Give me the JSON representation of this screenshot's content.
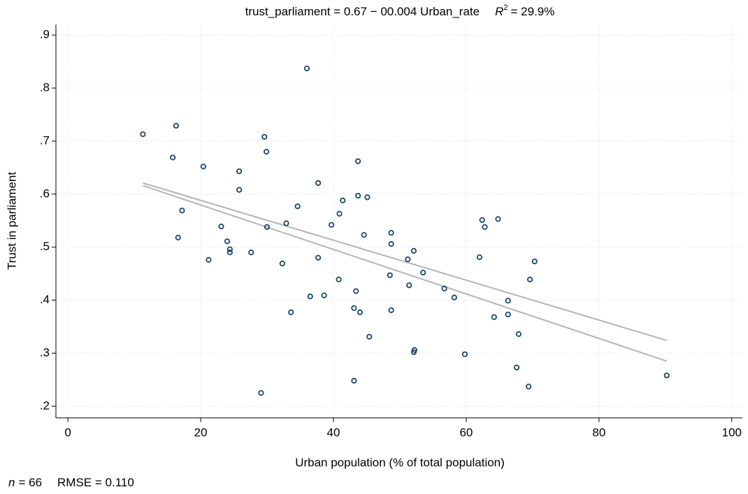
{
  "chart_data": {
    "type": "scatter",
    "title": "trust_parliament = 0.67 − 00.004 Urban_rate",
    "title_r": "R",
    "title_r_sup": "2",
    "title_r_value": "= 29.9%",
    "xlabel": "Urban population (% of total population)",
    "ylabel": "Trust in parliament",
    "note_n": "n",
    "note_n_value": "= 66",
    "note_rmse": "RMSE = 0.110",
    "xlim": [
      -1.8,
      101.6
    ],
    "ylim": [
      0.178,
      0.92
    ],
    "xticks": [
      0,
      20,
      40,
      60,
      80,
      100
    ],
    "yticks": [
      {
        "value": 0.2,
        "label": ".2"
      },
      {
        "value": 0.3,
        "label": ".3"
      },
      {
        "value": 0.4,
        "label": ".4"
      },
      {
        "value": 0.5,
        "label": ".5"
      },
      {
        "value": 0.6,
        "label": ".6"
      },
      {
        "value": 0.7,
        "label": ".7"
      },
      {
        "value": 0.8,
        "label": ".8"
      },
      {
        "value": 0.9,
        "label": ".9"
      }
    ],
    "grid": true,
    "series": [
      {
        "color": "#1a476f",
        "x": [
          11.3,
          16.3,
          15.8,
          20.4,
          17.2,
          16.6,
          21.2,
          23.1,
          24.0,
          24.4,
          24.4,
          25.8,
          25.8,
          27.6,
          29.1,
          29.6,
          30.0,
          29.9,
          32.3,
          33.6,
          34.6,
          36.0,
          37.7,
          37.7,
          36.5,
          38.6,
          39.7,
          40.9,
          41.4,
          40.8,
          43.7,
          43.7,
          45.1,
          44.6,
          43.4,
          43.1,
          44.0,
          45.4,
          43.1,
          48.7,
          48.7,
          48.5,
          48.7,
          51.2,
          52.1,
          53.5,
          51.4,
          52.2,
          52.1,
          56.7,
          58.2,
          59.8,
          62.4,
          62.8,
          64.8,
          62.0,
          66.3,
          66.3,
          64.2,
          67.9,
          67.6,
          69.4,
          69.6,
          70.3,
          90.2,
          32.9
        ],
        "values": [
          0.713,
          0.729,
          0.669,
          0.652,
          0.569,
          0.518,
          0.476,
          0.539,
          0.511,
          0.496,
          0.49,
          0.643,
          0.608,
          0.49,
          0.225,
          0.708,
          0.538,
          0.68,
          0.469,
          0.377,
          0.577,
          0.837,
          0.621,
          0.48,
          0.407,
          0.409,
          0.542,
          0.563,
          0.588,
          0.439,
          0.662,
          0.597,
          0.594,
          0.523,
          0.417,
          0.385,
          0.377,
          0.331,
          0.248,
          0.527,
          0.506,
          0.447,
          0.381,
          0.477,
          0.493,
          0.452,
          0.428,
          0.306,
          0.302,
          0.422,
          0.405,
          0.298,
          0.551,
          0.538,
          0.553,
          0.481,
          0.399,
          0.373,
          0.368,
          0.336,
          0.273,
          0.237,
          0.439,
          0.473,
          0.258,
          0.545
        ]
      }
    ],
    "fit_lines": [
      {
        "color": "#b4b4b4",
        "x": [
          11.3,
          90.2
        ],
        "values": [
          0.621,
          0.324
        ]
      },
      {
        "color": "#b4b4b4",
        "x": [
          11.3,
          90.2
        ],
        "values": [
          0.616,
          0.285
        ]
      }
    ]
  }
}
